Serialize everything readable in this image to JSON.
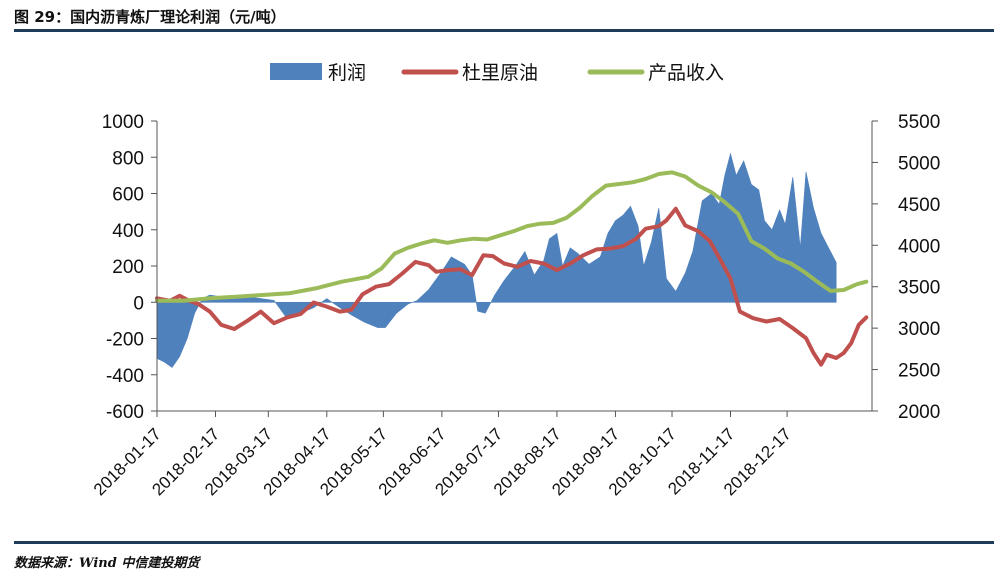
{
  "title": "图 29：国内沥青炼厂理论利润（元/吨）",
  "source": "数据来源：Wind  中信建投期货",
  "chart_data": {
    "type": "area+line",
    "categories": [
      "2018-01-17",
      "2018-02-17",
      "2018-03-17",
      "2018-04-17",
      "2018-05-17",
      "2018-06-17",
      "2018-07-17",
      "2018-08-17",
      "2018-09-17",
      "2018-10-17",
      "2018-11-17",
      "2018-12-17"
    ],
    "y_left": {
      "min": -600,
      "max": 1000,
      "ticks": [
        "1000",
        "800",
        "600",
        "400",
        "200",
        "0",
        "-200",
        "-400",
        "-600"
      ]
    },
    "y_right": {
      "min": 2000,
      "max": 5500,
      "ticks": [
        "5500",
        "5000",
        "4500",
        "4000",
        "3500",
        "3000",
        "2500",
        "2000"
      ]
    },
    "legend": [
      {
        "name": "利润",
        "color": "#4f81bd",
        "kind": "area"
      },
      {
        "name": "杜里原油",
        "color": "#c0504d",
        "kind": "line"
      },
      {
        "name": "产品收入",
        "color": "#9bbb59",
        "kind": "line"
      }
    ],
    "series": [
      {
        "name": "利润",
        "axis": "left",
        "color": "#4f81bd",
        "points": [
          [
            "2018-01-17",
            -310
          ],
          [
            "2018-01-21",
            -330
          ],
          [
            "2018-01-25",
            -360
          ],
          [
            "2018-01-29",
            -300
          ],
          [
            "2018-02-02",
            -200
          ],
          [
            "2018-02-06",
            -60
          ],
          [
            "2018-02-10",
            20
          ],
          [
            "2018-02-14",
            40
          ],
          [
            "2018-02-20",
            30
          ],
          [
            "2018-02-27",
            20
          ],
          [
            "2018-03-06",
            30
          ],
          [
            "2018-03-13",
            20
          ],
          [
            "2018-03-20",
            10
          ],
          [
            "2018-03-27",
            -90
          ],
          [
            "2018-04-03",
            -60
          ],
          [
            "2018-04-10",
            -30
          ],
          [
            "2018-04-17",
            20
          ],
          [
            "2018-04-24",
            -30
          ],
          [
            "2018-04-30",
            -70
          ],
          [
            "2018-05-07",
            -110
          ],
          [
            "2018-05-14",
            -140
          ],
          [
            "2018-05-18",
            -140
          ],
          [
            "2018-05-24",
            -60
          ],
          [
            "2018-05-30",
            -10
          ],
          [
            "2018-06-04",
            10
          ],
          [
            "2018-06-10",
            70
          ],
          [
            "2018-06-17",
            170
          ],
          [
            "2018-06-22",
            250
          ],
          [
            "2018-06-29",
            210
          ],
          [
            "2018-07-03",
            150
          ],
          [
            "2018-07-06",
            -50
          ],
          [
            "2018-07-10",
            -60
          ],
          [
            "2018-07-15",
            40
          ],
          [
            "2018-07-20",
            120
          ],
          [
            "2018-07-26",
            200
          ],
          [
            "2018-07-31",
            280
          ],
          [
            "2018-08-05",
            150
          ],
          [
            "2018-08-10",
            230
          ],
          [
            "2018-08-13",
            350
          ],
          [
            "2018-08-17",
            380
          ],
          [
            "2018-08-20",
            200
          ],
          [
            "2018-08-24",
            300
          ],
          [
            "2018-08-28",
            270
          ],
          [
            "2018-09-03",
            210
          ],
          [
            "2018-09-09",
            250
          ],
          [
            "2018-09-13",
            380
          ],
          [
            "2018-09-17",
            450
          ],
          [
            "2018-09-21",
            480
          ],
          [
            "2018-09-25",
            530
          ],
          [
            "2018-09-29",
            420
          ],
          [
            "2018-10-02",
            200
          ],
          [
            "2018-10-06",
            330
          ],
          [
            "2018-10-10",
            520
          ],
          [
            "2018-10-14",
            130
          ],
          [
            "2018-10-19",
            60
          ],
          [
            "2018-10-24",
            160
          ],
          [
            "2018-10-28",
            280
          ],
          [
            "2018-11-02",
            560
          ],
          [
            "2018-11-07",
            600
          ],
          [
            "2018-11-11",
            540
          ],
          [
            "2018-11-14",
            700
          ],
          [
            "2018-11-17",
            820
          ],
          [
            "2018-11-20",
            700
          ],
          [
            "2018-11-24",
            780
          ],
          [
            "2018-11-28",
            650
          ],
          [
            "2018-12-02",
            620
          ],
          [
            "2018-12-05",
            450
          ],
          [
            "2018-12-09",
            400
          ],
          [
            "2018-12-13",
            510
          ],
          [
            "2018-12-16",
            430
          ],
          [
            "2018-12-20",
            690
          ],
          [
            "2018-12-24",
            300
          ],
          [
            "2018-12-27",
            720
          ],
          [
            "2018-12-31",
            520
          ],
          [
            "2019-01-04",
            380
          ],
          [
            "2019-01-08",
            300
          ],
          [
            "2019-01-12",
            220
          ]
        ]
      },
      {
        "name": "杜里原油",
        "axis": "right",
        "color": "#c0504d",
        "points": [
          [
            "2018-01-17",
            3360
          ],
          [
            "2018-01-24",
            3330
          ],
          [
            "2018-01-29",
            3390
          ],
          [
            "2018-02-03",
            3330
          ],
          [
            "2018-02-08",
            3290
          ],
          [
            "2018-02-14",
            3200
          ],
          [
            "2018-02-20",
            3040
          ],
          [
            "2018-02-27",
            2990
          ],
          [
            "2018-03-06",
            3090
          ],
          [
            "2018-03-13",
            3200
          ],
          [
            "2018-03-20",
            3060
          ],
          [
            "2018-03-27",
            3130
          ],
          [
            "2018-04-03",
            3170
          ],
          [
            "2018-04-10",
            3310
          ],
          [
            "2018-04-17",
            3260
          ],
          [
            "2018-04-24",
            3200
          ],
          [
            "2018-04-30",
            3220
          ],
          [
            "2018-05-06",
            3410
          ],
          [
            "2018-05-13",
            3500
          ],
          [
            "2018-05-20",
            3530
          ],
          [
            "2018-05-27",
            3660
          ],
          [
            "2018-06-03",
            3800
          ],
          [
            "2018-06-10",
            3760
          ],
          [
            "2018-06-14",
            3680
          ],
          [
            "2018-06-20",
            3700
          ],
          [
            "2018-06-27",
            3710
          ],
          [
            "2018-07-03",
            3640
          ],
          [
            "2018-07-09",
            3880
          ],
          [
            "2018-07-14",
            3870
          ],
          [
            "2018-07-20",
            3780
          ],
          [
            "2018-07-27",
            3740
          ],
          [
            "2018-08-03",
            3810
          ],
          [
            "2018-08-10",
            3780
          ],
          [
            "2018-08-17",
            3700
          ],
          [
            "2018-08-24",
            3780
          ],
          [
            "2018-08-31",
            3880
          ],
          [
            "2018-09-07",
            3950
          ],
          [
            "2018-09-14",
            3960
          ],
          [
            "2018-09-21",
            3990
          ],
          [
            "2018-09-28",
            4080
          ],
          [
            "2018-10-03",
            4200
          ],
          [
            "2018-10-10",
            4230
          ],
          [
            "2018-10-14",
            4300
          ],
          [
            "2018-10-19",
            4440
          ],
          [
            "2018-10-24",
            4240
          ],
          [
            "2018-10-31",
            4170
          ],
          [
            "2018-11-06",
            4050
          ],
          [
            "2018-11-11",
            3850
          ],
          [
            "2018-11-17",
            3600
          ],
          [
            "2018-11-22",
            3200
          ],
          [
            "2018-11-29",
            3120
          ],
          [
            "2018-12-06",
            3080
          ],
          [
            "2018-12-13",
            3110
          ],
          [
            "2018-12-20",
            3000
          ],
          [
            "2018-12-27",
            2880
          ],
          [
            "2018-12-31",
            2700
          ],
          [
            "2019-01-04",
            2560
          ],
          [
            "2019-01-07",
            2680
          ],
          [
            "2019-01-12",
            2640
          ],
          [
            "2019-01-16",
            2700
          ],
          [
            "2019-01-20",
            2820
          ],
          [
            "2019-01-24",
            3040
          ],
          [
            "2019-01-28",
            3130
          ]
        ]
      },
      {
        "name": "产品收入",
        "axis": "right",
        "color": "#9bbb59",
        "points": [
          [
            "2018-01-17",
            3330
          ],
          [
            "2018-01-31",
            3330
          ],
          [
            "2018-02-14",
            3360
          ],
          [
            "2018-02-28",
            3380
          ],
          [
            "2018-03-14",
            3400
          ],
          [
            "2018-03-28",
            3420
          ],
          [
            "2018-04-11",
            3480
          ],
          [
            "2018-04-25",
            3560
          ],
          [
            "2018-05-09",
            3620
          ],
          [
            "2018-05-16",
            3720
          ],
          [
            "2018-05-23",
            3900
          ],
          [
            "2018-05-30",
            3970
          ],
          [
            "2018-06-06",
            4020
          ],
          [
            "2018-06-13",
            4060
          ],
          [
            "2018-06-20",
            4030
          ],
          [
            "2018-06-27",
            4060
          ],
          [
            "2018-07-04",
            4080
          ],
          [
            "2018-07-11",
            4070
          ],
          [
            "2018-07-18",
            4120
          ],
          [
            "2018-07-25",
            4170
          ],
          [
            "2018-08-01",
            4230
          ],
          [
            "2018-08-08",
            4260
          ],
          [
            "2018-08-15",
            4270
          ],
          [
            "2018-08-22",
            4330
          ],
          [
            "2018-08-29",
            4450
          ],
          [
            "2018-09-05",
            4600
          ],
          [
            "2018-09-12",
            4720
          ],
          [
            "2018-09-19",
            4740
          ],
          [
            "2018-09-26",
            4760
          ],
          [
            "2018-10-03",
            4800
          ],
          [
            "2018-10-10",
            4860
          ],
          [
            "2018-10-17",
            4880
          ],
          [
            "2018-10-24",
            4830
          ],
          [
            "2018-10-31",
            4720
          ],
          [
            "2018-11-07",
            4640
          ],
          [
            "2018-11-14",
            4520
          ],
          [
            "2018-11-21",
            4380
          ],
          [
            "2018-11-28",
            4050
          ],
          [
            "2018-12-05",
            3960
          ],
          [
            "2018-12-12",
            3840
          ],
          [
            "2018-12-19",
            3780
          ],
          [
            "2018-12-26",
            3680
          ],
          [
            "2019-01-02",
            3560
          ],
          [
            "2019-01-09",
            3450
          ],
          [
            "2019-01-16",
            3460
          ],
          [
            "2019-01-23",
            3530
          ],
          [
            "2019-01-28",
            3560
          ]
        ]
      }
    ]
  }
}
